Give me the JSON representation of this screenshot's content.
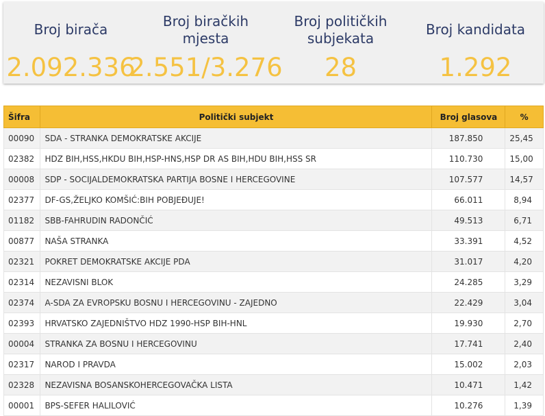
{
  "stats": {
    "voters": {
      "label": "Broj birača",
      "value": "2.092.336"
    },
    "polling_stations": {
      "label_line1": "Broj biračkih",
      "label_line2": "mjesta",
      "value": "2.551/3.276"
    },
    "parties": {
      "label_line1": "Broj političkih",
      "label_line2": "subjekata",
      "value": "28"
    },
    "candidates": {
      "label": "Broj kandidata",
      "value": "1.292"
    }
  },
  "table": {
    "headers": {
      "code": "Šifra",
      "party": "Politički subjekt",
      "votes": "Broj glasova",
      "percent": "%"
    },
    "rows": [
      {
        "code": "00090",
        "party": "SDA - STRANKA DEMOKRATSKE AKCIJE",
        "votes": "187.850",
        "percent": "25,45"
      },
      {
        "code": "02382",
        "party": "HDZ BIH,HSS,HKDU BIH,HSP-HNS,HSP DR AS BIH,HDU BIH,HSS SR",
        "votes": "110.730",
        "percent": "15,00"
      },
      {
        "code": "00008",
        "party": "SDP - SOCIJALDEMOKRATSKA PARTIJA BOSNE I HERCEGOVINE",
        "votes": "107.577",
        "percent": "14,57"
      },
      {
        "code": "02377",
        "party": "DF-GS,ŽELJKO KOMŠIĆ:BIH POBJEĐUJE!",
        "votes": "66.011",
        "percent": "8,94"
      },
      {
        "code": "01182",
        "party": "SBB-FAHRUDIN RADONČIĆ",
        "votes": "49.513",
        "percent": "6,71"
      },
      {
        "code": "00877",
        "party": "NAŠA STRANKA",
        "votes": "33.391",
        "percent": "4,52"
      },
      {
        "code": "02321",
        "party": "POKRET DEMOKRATSKE AKCIJE PDA",
        "votes": "31.017",
        "percent": "4,20"
      },
      {
        "code": "02314",
        "party": "NEZAVISNI BLOK",
        "votes": "24.285",
        "percent": "3,29"
      },
      {
        "code": "02374",
        "party": "A-SDA ZA EVROPSKU BOSNU I HERCEGOVINU - ZAJEDNO",
        "votes": "22.429",
        "percent": "3,04"
      },
      {
        "code": "02393",
        "party": "HRVATSKO ZAJEDNIŠTVO HDZ 1990-HSP BIH-HNL",
        "votes": "19.930",
        "percent": "2,70"
      },
      {
        "code": "00004",
        "party": "STRANKA ZA BOSNU I HERCEGOVINU",
        "votes": "17.741",
        "percent": "2,40"
      },
      {
        "code": "02317",
        "party": "NAROD I PRAVDA",
        "votes": "15.002",
        "percent": "2,03"
      },
      {
        "code": "02328",
        "party": "NEZAVISNA BOSANSKOHERCEGOVAČKA LISTA",
        "votes": "10.471",
        "percent": "1,42"
      },
      {
        "code": "00001",
        "party": "BPS-SEFER HALILOVIĆ",
        "votes": "10.276",
        "percent": "1,39"
      }
    ]
  },
  "colors": {
    "accent": "#f5c242",
    "header_bg": "#f5be35",
    "label_text": "#2c3a66",
    "panel_bg": "#f0f0f0"
  }
}
